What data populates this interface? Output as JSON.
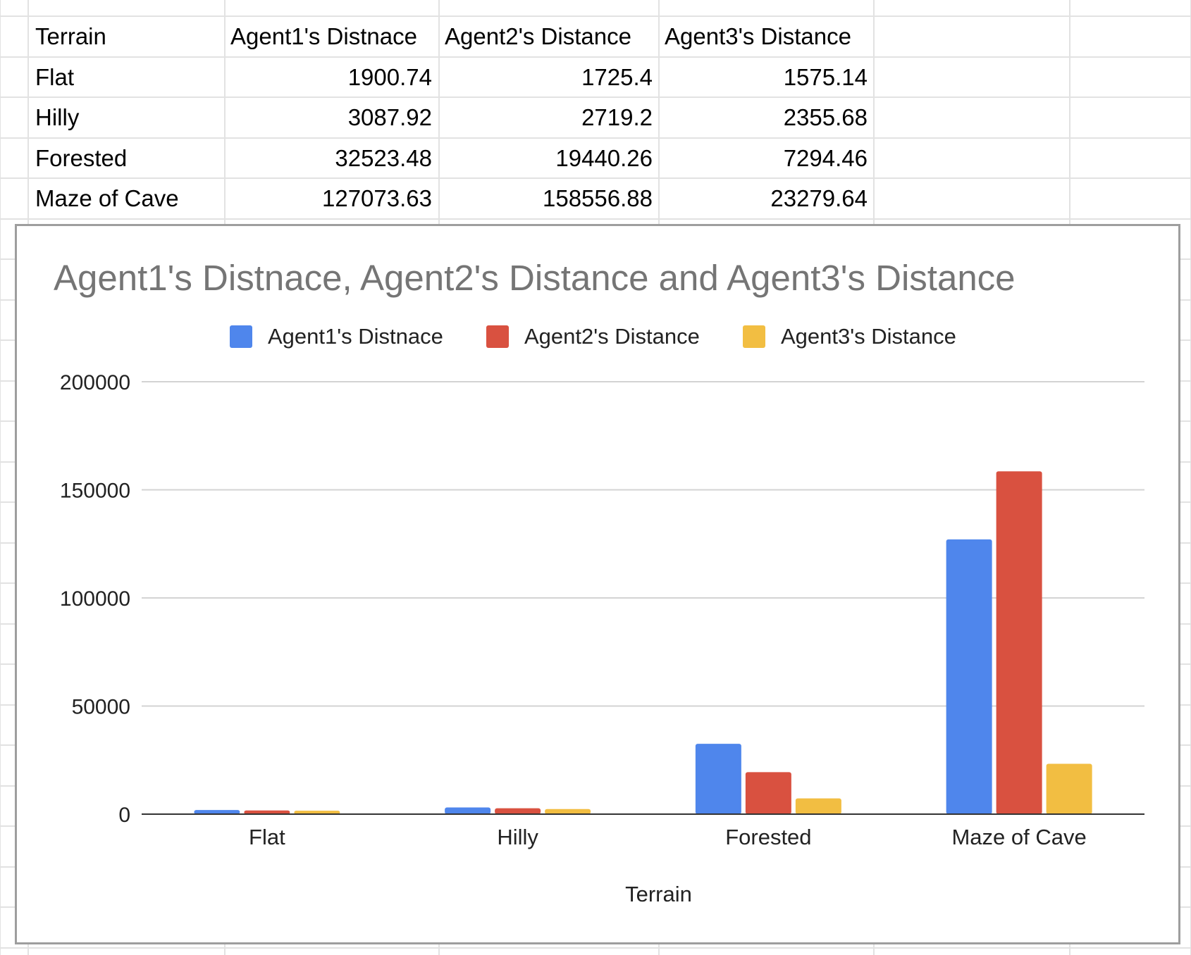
{
  "sheet": {
    "headers": [
      "Terrain",
      "Agent1's Distnace",
      "Agent2's Distance",
      "Agent3's Distance"
    ],
    "rows": [
      [
        "Flat",
        "1900.74",
        "1725.4",
        "1575.14"
      ],
      [
        "Hilly",
        "3087.92",
        "2719.2",
        "2355.68"
      ],
      [
        "Forested",
        "32523.48",
        "19440.26",
        "7294.46"
      ],
      [
        "Maze of Cave",
        "127073.63",
        "158556.88",
        "23279.64"
      ]
    ]
  },
  "chart_data": {
    "type": "bar",
    "title": "Agent1's Distnace, Agent2's Distance and Agent3's Distance",
    "xlabel": "Terrain",
    "ylabel": "",
    "categories": [
      "Flat",
      "Hilly",
      "Forested",
      "Maze of Cave"
    ],
    "series": [
      {
        "name": "Agent1's Distnace",
        "color": "#4f86ec",
        "values": [
          1900.74,
          3087.92,
          32523.48,
          127073.63
        ]
      },
      {
        "name": "Agent2's Distance",
        "color": "#d95140",
        "values": [
          1725.4,
          2719.2,
          19440.26,
          158556.88
        ]
      },
      {
        "name": "Agent3's Distance",
        "color": "#f2be42",
        "values": [
          1575.14,
          2355.68,
          7294.46,
          23279.64
        ]
      }
    ],
    "ylim": [
      0,
      200000
    ],
    "yticks": [
      "0",
      "50000",
      "100000",
      "150000",
      "200000"
    ],
    "legend_position": "top",
    "grid": true
  }
}
